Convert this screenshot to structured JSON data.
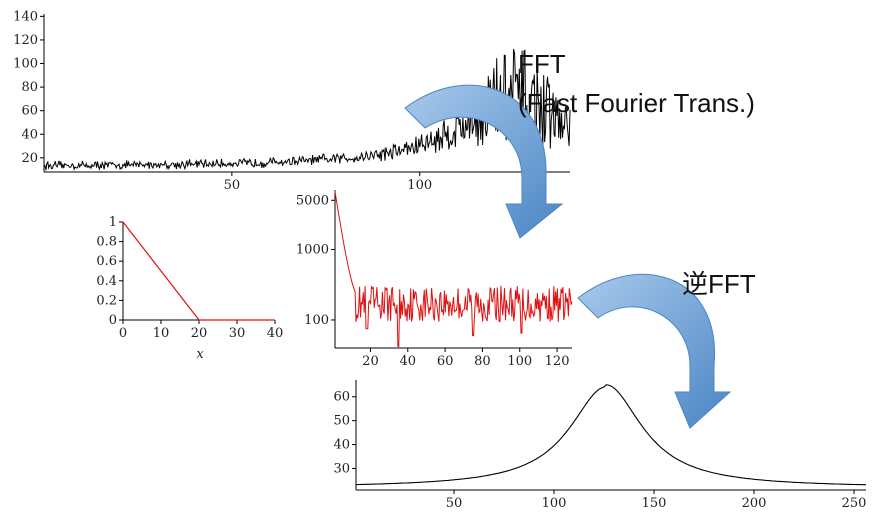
{
  "colors": {
    "black_trace": "#000000",
    "red_trace": "#e01010",
    "arrow_fill": "#5d9bd5",
    "arrow_light": "#a9c9ec"
  },
  "labels": {
    "fft_title": "FFT",
    "fft_subtitle": "(Fast Fourier Trans.)",
    "inverse_fft": "逆FFT"
  },
  "chart_data": [
    {
      "id": "signal",
      "type": "line",
      "title": "",
      "xlabel": "",
      "ylabel": "",
      "xlim": [
        0,
        140
      ],
      "ylim": [
        8,
        142
      ],
      "xticks": [
        50,
        100
      ],
      "yticks": [
        20,
        40,
        60,
        80,
        100,
        120,
        140
      ],
      "series": [
        {
          "values_peak_at": 125,
          "color": "black"
        }
      ]
    },
    {
      "id": "window",
      "type": "line",
      "title": "",
      "xlabel": "x",
      "ylabel": "",
      "xlim": [
        0,
        40
      ],
      "ylim": [
        0,
        1
      ],
      "xticks": [
        0,
        10,
        20,
        30,
        40
      ],
      "yticks": [
        0,
        0.2,
        0.4,
        0.6,
        0.8,
        1
      ],
      "series": [
        {
          "x": [
            0,
            20,
            40
          ],
          "y": [
            1,
            0,
            0
          ],
          "color": "red"
        }
      ]
    },
    {
      "id": "spectrum",
      "type": "line",
      "title": "",
      "xlabel": "",
      "ylabel": "",
      "scale_y": "log",
      "xlim": [
        1,
        128
      ],
      "ylim": [
        40,
        7000
      ],
      "xticks": [
        20,
        40,
        60,
        80,
        100,
        120
      ],
      "yticks": [
        100,
        1000,
        5000
      ],
      "series": [
        {
          "color": "red"
        }
      ]
    },
    {
      "id": "reconstructed",
      "type": "line",
      "title": "",
      "xlabel": "",
      "ylabel": "",
      "xlim": [
        1,
        256
      ],
      "ylim": [
        21,
        67
      ],
      "xticks": [
        50,
        100,
        150,
        200,
        250
      ],
      "yticks": [
        30,
        40,
        50,
        60
      ],
      "series": [
        {
          "peak_x": 126,
          "peak_y": 65,
          "color": "black"
        }
      ]
    }
  ]
}
